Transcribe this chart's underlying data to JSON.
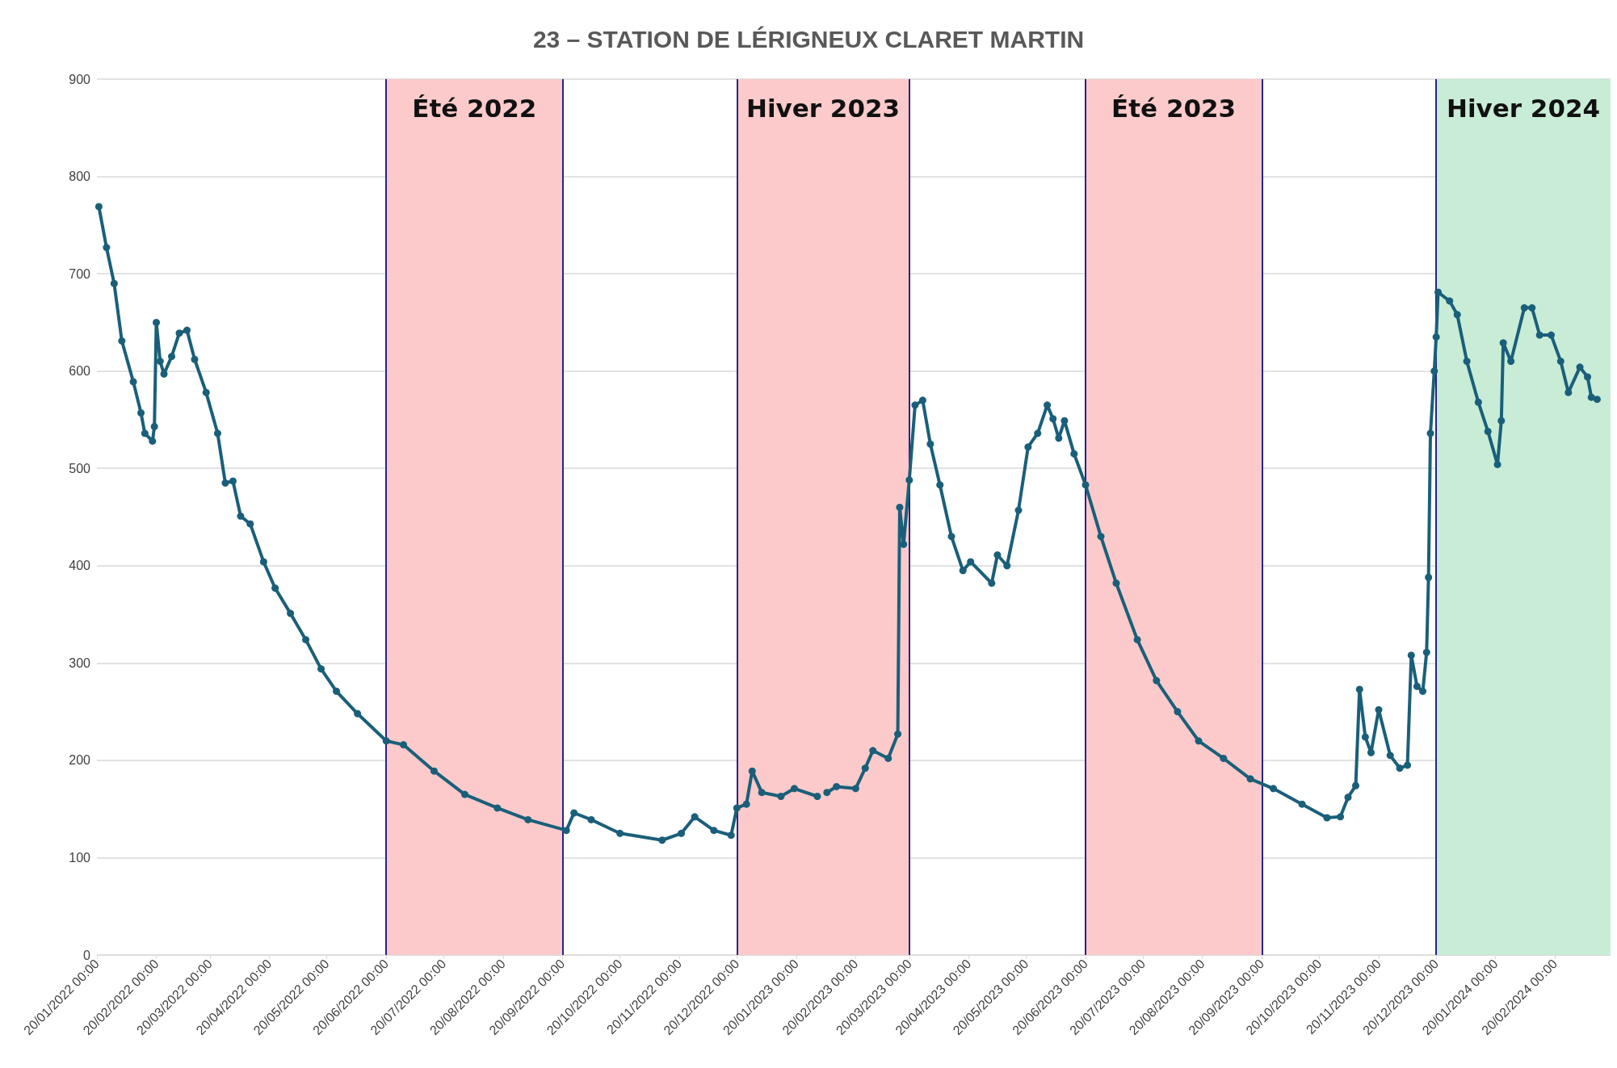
{
  "chart_data": {
    "type": "line",
    "title": "23 – STATION DE LÉRIGNEUX CLARET MARTIN",
    "x": [
      "2022-01-21",
      "2022-01-25",
      "2022-01-29",
      "2022-02-02",
      "2022-02-08",
      "2022-02-12",
      "2022-02-14",
      "2022-02-18",
      "2022-02-19",
      "2022-02-20",
      "2022-02-22",
      "2022-02-24",
      "2022-02-28",
      "2022-03-04",
      "2022-03-08",
      "2022-03-12",
      "2022-03-18",
      "2022-03-24",
      "2022-03-28",
      "2022-04-01",
      "2022-04-05",
      "2022-04-10",
      "2022-04-17",
      "2022-04-23",
      "2022-05-01",
      "2022-05-09",
      "2022-05-17",
      "2022-05-25",
      "2022-06-05",
      "2022-06-20",
      "2022-06-29",
      "2022-07-15",
      "2022-07-31",
      "2022-08-17",
      "2022-09-02",
      "2022-09-22",
      "2022-09-26",
      "2022-10-05",
      "2022-10-20",
      "2022-11-11",
      "2022-11-21",
      "2022-11-28",
      "2022-12-08",
      "2022-12-17",
      "2022-12-20",
      "2022-12-25",
      "2022-12-28",
      "2023-01-02",
      "2023-01-12",
      "2023-01-19",
      "2023-01-31",
      "2023-02-03",
      "2023-02-05",
      "2023-02-10",
      "2023-02-20",
      "2023-02-25",
      "2023-03-01",
      "2023-03-09",
      "2023-03-14",
      "2023-03-15",
      "2023-03-17",
      "2023-03-20",
      "2023-03-23",
      "2023-03-27",
      "2023-03-31",
      "2023-04-05",
      "2023-04-11",
      "2023-04-17",
      "2023-04-21",
      "2023-05-02",
      "2023-05-05",
      "2023-05-10",
      "2023-05-16",
      "2023-05-21",
      "2023-05-26",
      "2023-05-31",
      "2023-06-03",
      "2023-06-06",
      "2023-06-09",
      "2023-06-14",
      "2023-06-20",
      "2023-06-28",
      "2023-07-06",
      "2023-07-17",
      "2023-07-27",
      "2023-08-07",
      "2023-08-18",
      "2023-08-31",
      "2023-09-14",
      "2023-09-26",
      "2023-10-11",
      "2023-10-24",
      "2023-10-31",
      "2023-11-04",
      "2023-11-08",
      "2023-11-10",
      "2023-11-13",
      "2023-11-16",
      "2023-11-20",
      "2023-11-26",
      "2023-12-01",
      "2023-12-05",
      "2023-12-07",
      "2023-12-10",
      "2023-12-13",
      "2023-12-15",
      "2023-12-16",
      "2023-12-17",
      "2023-12-19",
      "2023-12-20",
      "2023-12-21",
      "2023-12-27",
      "2023-12-31",
      "2024-01-05",
      "2024-01-11",
      "2024-01-16",
      "2024-01-21",
      "2024-01-23",
      "2024-01-24",
      "2024-01-28",
      "2024-02-04",
      "2024-02-08",
      "2024-02-12",
      "2024-02-18",
      "2024-02-23",
      "2024-02-27",
      "2024-03-04",
      "2024-03-08",
      "2024-03-10",
      "2024-03-13"
    ],
    "series": [
      {
        "color": "#1a5f7a",
        "values": [
          769,
          727,
          690,
          631,
          589,
          557,
          536,
          528,
          543,
          650,
          610,
          597,
          615,
          639,
          642,
          612,
          578,
          536,
          485,
          487,
          451,
          443,
          404,
          377,
          351,
          324,
          294,
          271,
          248,
          220,
          216,
          189,
          165,
          151,
          139,
          128,
          146,
          139,
          125,
          118,
          125,
          142,
          128,
          123,
          151,
          155,
          189,
          167,
          163,
          171,
          163,
          null,
          167,
          173,
          171,
          192,
          210,
          202,
          227,
          460,
          422,
          488,
          565,
          570,
          525,
          483,
          430,
          395,
          404,
          382,
          411,
          400,
          457,
          522,
          536,
          565,
          551,
          531,
          549,
          515,
          483,
          430,
          382,
          324,
          282,
          250,
          220,
          202,
          181,
          171,
          155,
          141,
          142,
          162,
          174,
          273,
          224,
          208,
          252,
          205,
          192,
          195,
          308,
          276,
          271,
          311,
          388,
          536,
          600,
          635,
          681,
          672,
          658,
          610,
          568,
          538,
          504,
          549,
          629,
          610,
          665,
          665,
          637,
          637,
          610,
          578,
          604,
          594,
          573,
          571
        ]
      }
    ],
    "xlim": [
      "2022-01-20",
      "2024-03-20"
    ],
    "xticks": [
      {
        "value": "2022-01-20",
        "label": "20/01/2022 00:00"
      },
      {
        "value": "2022-02-20",
        "label": "20/02/2022 00:00"
      },
      {
        "value": "2022-03-20",
        "label": "20/03/2022 00:00"
      },
      {
        "value": "2022-04-20",
        "label": "20/04/2022 00:00"
      },
      {
        "value": "2022-05-20",
        "label": "20/05/2022 00:00"
      },
      {
        "value": "2022-06-20",
        "label": "20/06/2022 00:00"
      },
      {
        "value": "2022-07-20",
        "label": "20/07/2022 00:00"
      },
      {
        "value": "2022-08-20",
        "label": "20/08/2022 00:00"
      },
      {
        "value": "2022-09-20",
        "label": "20/09/2022 00:00"
      },
      {
        "value": "2022-10-20",
        "label": "20/10/2022 00:00"
      },
      {
        "value": "2022-11-20",
        "label": "20/11/2022 00:00"
      },
      {
        "value": "2022-12-20",
        "label": "20/12/2022 00:00"
      },
      {
        "value": "2023-01-20",
        "label": "20/01/2023 00:00"
      },
      {
        "value": "2023-02-20",
        "label": "20/02/2023 00:00"
      },
      {
        "value": "2023-03-20",
        "label": "20/03/2023 00:00"
      },
      {
        "value": "2023-04-20",
        "label": "20/04/2023 00:00"
      },
      {
        "value": "2023-05-20",
        "label": "20/05/2023 00:00"
      },
      {
        "value": "2023-06-20",
        "label": "20/06/2023 00:00"
      },
      {
        "value": "2023-07-20",
        "label": "20/07/2023 00:00"
      },
      {
        "value": "2023-08-20",
        "label": "20/08/2023 00:00"
      },
      {
        "value": "2023-09-20",
        "label": "20/09/2023 00:00"
      },
      {
        "value": "2023-10-20",
        "label": "20/10/2023 00:00"
      },
      {
        "value": "2023-11-20",
        "label": "20/11/2023 00:00"
      },
      {
        "value": "2023-12-20",
        "label": "20/12/2023 00:00"
      },
      {
        "value": "2024-01-20",
        "label": "20/01/2024 00:00"
      },
      {
        "value": "2024-02-20",
        "label": "20/02/2024 00:00"
      }
    ],
    "ylim": [
      0,
      900
    ],
    "yticks": [
      0,
      100,
      200,
      300,
      400,
      500,
      600,
      700,
      800,
      900
    ],
    "bands": [
      {
        "axis": "x",
        "from": "2022-06-20",
        "to": "2022-09-20",
        "label": "Été 2022",
        "color": "#fccaca"
      },
      {
        "axis": "x",
        "from": "2022-12-20",
        "to": "2023-03-20",
        "label": "Hiver 2023",
        "color": "#fccaca"
      },
      {
        "axis": "x",
        "from": "2023-06-20",
        "to": "2023-09-20",
        "label": "Été 2023",
        "color": "#fccaca"
      },
      {
        "axis": "x",
        "from": "2023-12-20",
        "to": "2024-03-20",
        "label": "Hiver 2024",
        "color": "#c8ecd6"
      }
    ],
    "ref_lines": [
      {
        "axis": "x",
        "value": "2022-06-20",
        "color": "#26248a"
      },
      {
        "axis": "x",
        "value": "2022-09-20",
        "color": "#26248a"
      },
      {
        "axis": "x",
        "value": "2022-12-20",
        "color": "#26248a"
      },
      {
        "axis": "x",
        "value": "2023-03-20",
        "color": "#26248a"
      },
      {
        "axis": "x",
        "value": "2023-06-20",
        "color": "#26248a"
      },
      {
        "axis": "x",
        "value": "2023-09-20",
        "color": "#26248a"
      },
      {
        "axis": "x",
        "value": "2023-12-20",
        "color": "#26248a"
      }
    ],
    "grid": "y",
    "marker": "circle",
    "line_style": "solid"
  }
}
